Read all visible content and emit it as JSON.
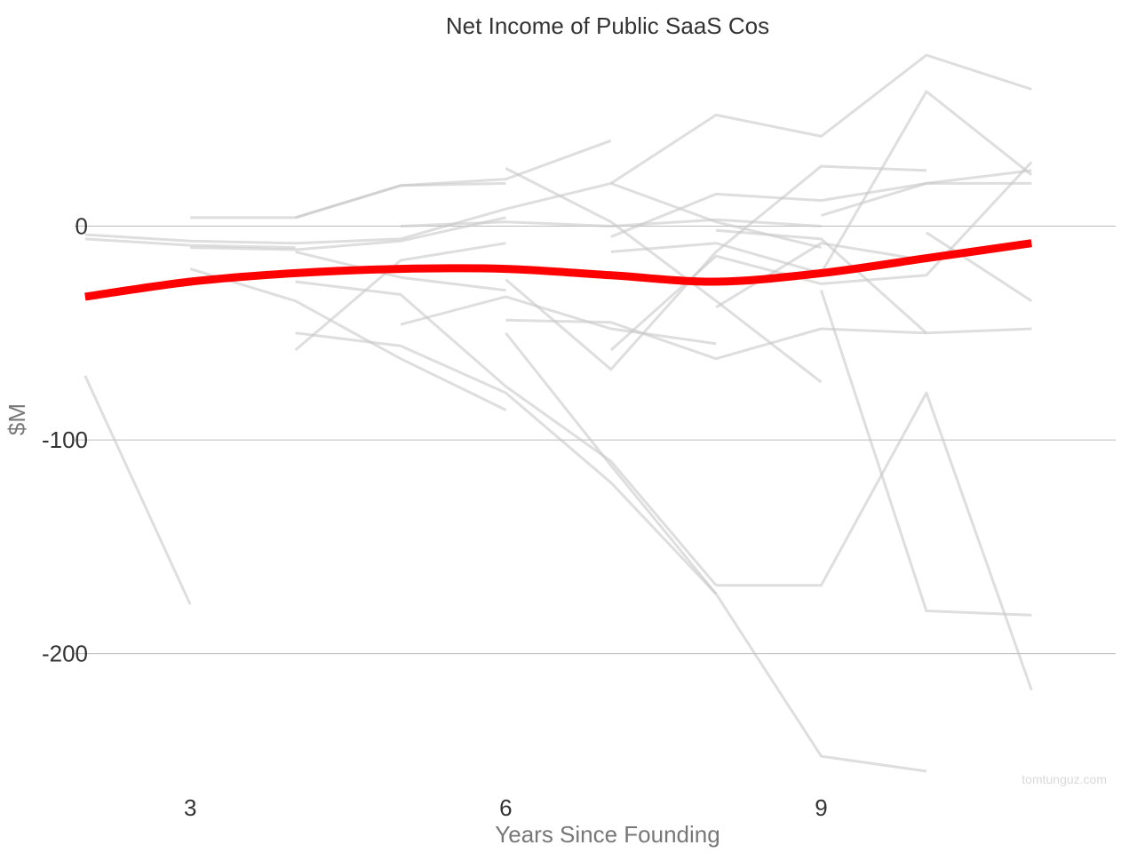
{
  "chart_data": {
    "type": "line",
    "title": "Net Income of Public SaaS Cos",
    "xlabel": "Years Since Founding",
    "ylabel": "$M",
    "credit": "tomtunguz.com",
    "x_ticks": [
      3,
      6,
      9
    ],
    "y_ticks": [
      0,
      -100,
      -200
    ],
    "y_tick_labels": [
      "0",
      "-100",
      "-200"
    ],
    "xlim": [
      1.9,
      11.8
    ],
    "ylim": [
      -260,
      85
    ],
    "grid": true,
    "legend": "none",
    "colors": {
      "highlight": "#ff0000",
      "background_series": "#c8c8c8",
      "grid": "#bbbbbb"
    },
    "highlight_series": {
      "x": [
        2,
        3,
        4,
        5,
        6,
        7,
        8,
        9,
        10,
        11
      ],
      "y": [
        -33,
        -26,
        -22,
        -20,
        -20,
        -23,
        -26,
        -22,
        -15,
        -8
      ]
    },
    "background_series": [
      {
        "x": [
          2,
          3
        ],
        "y": [
          -70,
          -177
        ]
      },
      {
        "x": [
          2,
          3,
          4,
          5
        ],
        "y": [
          -4,
          -7,
          -8,
          -6
        ]
      },
      {
        "x": [
          2,
          3,
          4
        ],
        "y": [
          -6,
          -9,
          -10
        ]
      },
      {
        "x": [
          3,
          4,
          5,
          6
        ],
        "y": [
          4,
          4,
          19,
          20
        ]
      },
      {
        "x": [
          3,
          4,
          5,
          6
        ],
        "y": [
          -10,
          -11,
          -7,
          4
        ]
      },
      {
        "x": [
          3,
          4,
          5,
          6
        ],
        "y": [
          -20,
          -35,
          -62,
          -86
        ]
      },
      {
        "x": [
          4,
          5,
          6,
          7
        ],
        "y": [
          4,
          19,
          22,
          40
        ]
      },
      {
        "x": [
          4,
          5,
          6
        ],
        "y": [
          -12,
          -24,
          -30
        ]
      },
      {
        "x": [
          4,
          5,
          6,
          7,
          8
        ],
        "y": [
          -50,
          -56,
          -78,
          -120,
          -172
        ]
      },
      {
        "x": [
          4,
          5,
          6
        ],
        "y": [
          -58,
          -16,
          -8
        ]
      },
      {
        "x": [
          4,
          5,
          6,
          7,
          8
        ],
        "y": [
          -26,
          -32,
          -75,
          -110,
          -168
        ]
      },
      {
        "x": [
          5,
          6,
          7,
          8,
          9
        ],
        "y": [
          0,
          2,
          0,
          3,
          0
        ]
      },
      {
        "x": [
          5,
          6,
          7,
          8
        ],
        "y": [
          -46,
          -33,
          -48,
          -55
        ]
      },
      {
        "x": [
          5,
          6,
          7,
          8,
          9
        ],
        "y": [
          -6,
          8,
          20,
          2,
          -10
        ]
      },
      {
        "x": [
          6,
          7,
          8,
          9
        ],
        "y": [
          27,
          2,
          -35,
          -73
        ]
      },
      {
        "x": [
          6,
          7,
          8,
          9,
          10
        ],
        "y": [
          -50,
          -112,
          -172,
          -248,
          -255
        ]
      },
      {
        "x": [
          6,
          7,
          8,
          9,
          10
        ],
        "y": [
          -44,
          -45,
          -62,
          -48,
          -50
        ]
      },
      {
        "x": [
          6,
          7,
          8,
          9,
          10
        ],
        "y": [
          -25,
          -67,
          -12,
          28,
          26
        ]
      },
      {
        "x": [
          7,
          8,
          9,
          10,
          11
        ],
        "y": [
          20,
          52,
          42,
          80,
          64
        ]
      },
      {
        "x": [
          7,
          8,
          9,
          10,
          11
        ],
        "y": [
          -12,
          -8,
          -22,
          63,
          24
        ]
      },
      {
        "x": [
          7,
          8,
          9,
          10,
          11
        ],
        "y": [
          -58,
          -14,
          -27,
          -23,
          30
        ]
      },
      {
        "x": [
          7,
          8,
          9,
          10,
          11
        ],
        "y": [
          -5,
          15,
          12,
          20,
          20
        ]
      },
      {
        "x": [
          8,
          9,
          10,
          11
        ],
        "y": [
          -168,
          -168,
          -78,
          -217
        ]
      },
      {
        "x": [
          8,
          9,
          10,
          11
        ],
        "y": [
          -2,
          -6,
          -50,
          -48
        ]
      },
      {
        "x": [
          8,
          9,
          10,
          11
        ],
        "y": [
          -38,
          -8,
          -16,
          -8
        ]
      },
      {
        "x": [
          9,
          10,
          11
        ],
        "y": [
          5,
          20,
          26
        ]
      },
      {
        "x": [
          9,
          10,
          11
        ],
        "y": [
          -30,
          -180,
          -182
        ]
      },
      {
        "x": [
          10,
          11
        ],
        "y": [
          -3,
          -35
        ]
      }
    ]
  }
}
